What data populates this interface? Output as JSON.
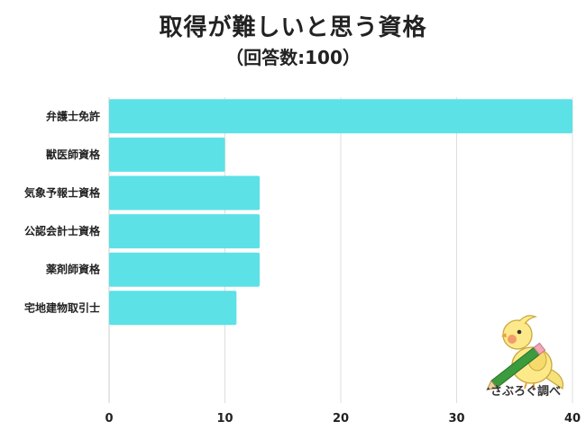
{
  "title": "取得が難しいと思う資格",
  "subtitle": "（回答数:100）",
  "watermark": "さぶろぐ調べ",
  "colors": {
    "bar": "#5ce1e6",
    "grid": "#dddddd",
    "axis": "#cccccc"
  },
  "chart_data": {
    "type": "bar",
    "orientation": "horizontal",
    "categories": [
      "弁護士免許",
      "獣医師資格",
      "気象予報士資格",
      "公認会計士資格",
      "薬剤師資格",
      "宅地建物取引士"
    ],
    "values": [
      40,
      10,
      13,
      13,
      13,
      11
    ],
    "xticks": [
      0,
      10,
      20,
      30,
      40
    ],
    "xlim": [
      0,
      40
    ],
    "grid": true
  }
}
